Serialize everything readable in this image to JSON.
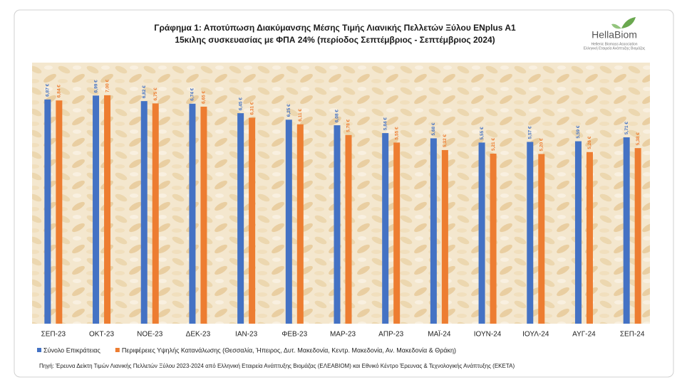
{
  "chart_data": {
    "type": "bar",
    "title": [
      "Γράφημα 1: Αποτύπωση Διακύμανσης Μέσης Τιμής Λιανικής Πελλετών Ξύλου ENplus A1",
      "15κιλης συσκευασίας με ΦΠΑ 24% (περίοδος Σεπτέμβριος - Σεπτέμβριος 2024)"
    ],
    "categories": [
      "ΣΕΠ-23",
      "ΟΚΤ-23",
      "ΝΟΕ-23",
      "ΔΕΚ-23",
      "ΙΑΝ-23",
      "ΦΕΒ-23",
      "ΜΑΡ-23",
      "ΑΠΡ-23",
      "ΜΑΪ-24",
      "ΙΟΥΝ-24",
      "ΙΟΥΛ-24",
      "ΑΥΓ-24",
      "ΣΕΠ-24"
    ],
    "series": [
      {
        "name": "Σύνολο Επικράτειας",
        "color": "#4472c4",
        "values": [
          6.87,
          6.99,
          6.82,
          6.74,
          6.45,
          6.25,
          6.08,
          5.84,
          5.68,
          5.55,
          5.57,
          5.59,
          5.71
        ],
        "value_labels": [
          "6,87 €",
          "6,99 €",
          "6,82 €",
          "6,74 €",
          "6,45 €",
          "6,25 €",
          "6,08 €",
          "5,84 €",
          "5,68 €",
          "5,55 €",
          "5,57 €",
          "5,59 €",
          "5,71 €"
        ]
      },
      {
        "name": "Περιφέρειες Υψηλής Κατανάλωσης (Θεσσαλία, Ήπειρος, Δυτ. Μακεδονία, Κεντρ. Μακεδονία, Αν. Μακεδονία & Θράκη)",
        "color": "#ed7d31",
        "values": [
          6.84,
          7.0,
          6.75,
          6.65,
          6.31,
          6.11,
          5.78,
          5.55,
          5.32,
          5.21,
          5.2,
          5.26,
          5.38
        ],
        "value_labels": [
          "6,84 €",
          "7,00 €",
          "6,75 €",
          "6,65 €",
          "6,31 €",
          "6,11 €",
          "5,78 €",
          "5,55 €",
          "5,32 €",
          "5,21 €",
          "5,20 €",
          "5,26 €",
          "5,38 €"
        ]
      }
    ],
    "ylim": [
      0,
      8
    ],
    "legend": "bottom",
    "source": "Πηγή: Έρευνα Δείκτη Τιμών Λιανικής Πελλετών Ξύλου 2023-2024 από Ελληνική Εταιρεία Ανάπτυξης Βιομάζας (ΕΛΕΑΒΙΟΜ) και Εθνικό Κέντρο Έρευνας & Τεχνολογικής Ανάπτυξης (ΕΚΕΤΑ)",
    "logo": {
      "name": "HellaBiom",
      "subtitle": [
        "Hellenic Biomass Association",
        "Ελληνική Εταιρεία Ανάπτυξης Βιομάζας"
      ]
    }
  }
}
